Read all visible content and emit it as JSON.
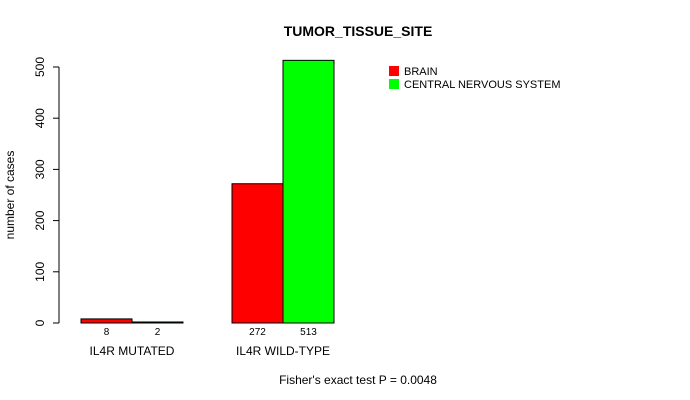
{
  "chart_data": {
    "type": "bar",
    "title": "TUMOR_TISSUE_SITE",
    "xlabel": "Fisher's exact test P = 0.0048",
    "ylabel": "number of cases",
    "ylim": [
      0,
      500
    ],
    "yticks": [
      "0",
      "100",
      "200",
      "300",
      "400",
      "500"
    ],
    "categories": [
      "IL4R MUTATED",
      "IL4R WILD-TYPE"
    ],
    "series": [
      {
        "name": "BRAIN",
        "color": "#ff0000",
        "values": [
          8,
          272
        ],
        "labels": [
          "8",
          "272"
        ]
      },
      {
        "name": "CENTRAL NERVOUS SYSTEM",
        "color": "#00ff00",
        "values": [
          2,
          513
        ],
        "labels": [
          "2",
          "513"
        ]
      }
    ],
    "legend_position": "top-right",
    "grid": false
  }
}
